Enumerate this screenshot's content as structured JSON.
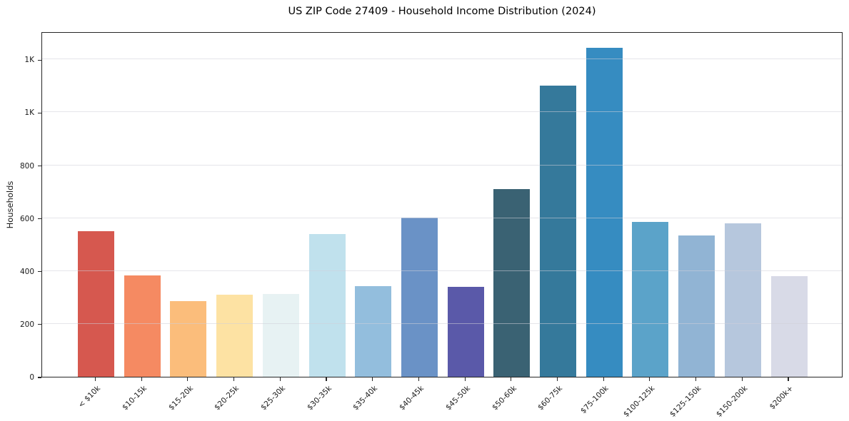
{
  "chart_data": {
    "type": "bar",
    "title": "US ZIP Code 27409 - Household Income Distribution (2024)",
    "xlabel": "",
    "ylabel": "Households",
    "categories": [
      "< $10k",
      "$10-15k",
      "$15-20k",
      "$20-25k",
      "$25-30k",
      "$30-35k",
      "$35-40k",
      "$40-45k",
      "$45-50k",
      "$50-60k",
      "$60-75k",
      "$75-100k",
      "$100-125k",
      "$125-150k",
      "$150-200k",
      "$200k+"
    ],
    "values": [
      550,
      382,
      285,
      310,
      313,
      541,
      344,
      601,
      341,
      710,
      1101,
      1243,
      585,
      534,
      581,
      381
    ],
    "bar_colors": [
      "#d6584f",
      "#f58a62",
      "#fbbd7b",
      "#fde2a3",
      "#e7f2f3",
      "#c0e1ed",
      "#93bedd",
      "#6a92c6",
      "#5a59a9",
      "#3a6273",
      "#35799b",
      "#368cc1",
      "#5ba3c9",
      "#91b4d4",
      "#b6c7dd",
      "#d8dae7"
    ],
    "ylim": [
      0,
      1306
    ],
    "yticks": {
      "values": [
        0,
        200,
        400,
        600,
        800,
        1000,
        1200
      ],
      "labels": [
        "0",
        "200",
        "400",
        "600",
        "800",
        "1K",
        "1K"
      ]
    },
    "grid": "horizontal",
    "legend": "none",
    "frame": "box",
    "colors": {
      "background": "#ffffff",
      "spine": "#262626",
      "gridline": "#e8e8ee",
      "text": "#1a1a1a"
    }
  }
}
